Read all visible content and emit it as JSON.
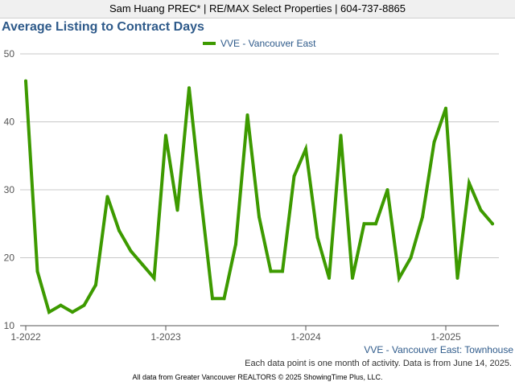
{
  "header": {
    "agent_line": "Sam Huang PREC* | RE/MAX Select Properties | 604-737-8865"
  },
  "chart_data": {
    "type": "line",
    "title": "Average Listing to Contract Days",
    "xlabel": "",
    "ylabel": "",
    "ylim": [
      10,
      50
    ],
    "yticks": [
      10,
      20,
      30,
      40,
      50
    ],
    "x_tick_labels": [
      "1-2022",
      "1-2023",
      "1-2024",
      "1-2025"
    ],
    "grid": "horizontal",
    "legend_position": "top-center",
    "series_color": "#3d9a00",
    "x": [
      "2022-01",
      "2022-02",
      "2022-03",
      "2022-04",
      "2022-05",
      "2022-06",
      "2022-07",
      "2022-08",
      "2022-09",
      "2022-10",
      "2022-11",
      "2022-12",
      "2023-01",
      "2023-02",
      "2023-03",
      "2023-04",
      "2023-05",
      "2023-06",
      "2023-07",
      "2023-08",
      "2023-09",
      "2023-10",
      "2023-11",
      "2023-12",
      "2024-01",
      "2024-02",
      "2024-03",
      "2024-04",
      "2024-05",
      "2024-06",
      "2024-07",
      "2024-08",
      "2024-09",
      "2024-10",
      "2024-11",
      "2024-12",
      "2025-01",
      "2025-02",
      "2025-03",
      "2025-04",
      "2025-05"
    ],
    "series": [
      {
        "name": "VVE - Vancouver East",
        "values": [
          46,
          18,
          12,
          13,
          12,
          13,
          16,
          29,
          24,
          21,
          19,
          17,
          38,
          27,
          45,
          29,
          14,
          14,
          22,
          41,
          26,
          18,
          18,
          32,
          36,
          23,
          17,
          38,
          17,
          25,
          25,
          30,
          17,
          20,
          26,
          37,
          42,
          17,
          31,
          27,
          25
        ]
      }
    ]
  },
  "annotations": {
    "series_note": "VVE - Vancouver East: Townhouse",
    "data_note": "Each data point is one month of activity. Data is from June 14, 2025.",
    "source": "All data from Greater Vancouver REALTORS © 2025 ShowingTime Plus, LLC."
  }
}
